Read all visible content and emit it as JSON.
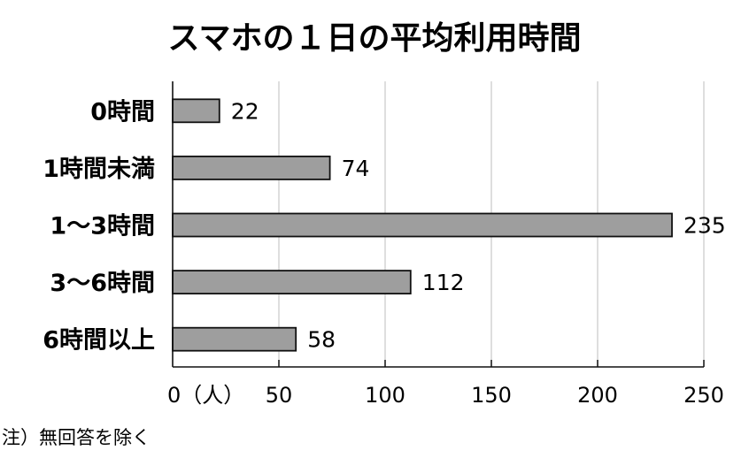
{
  "chart_data": {
    "type": "bar",
    "orientation": "horizontal",
    "title": "スマホの１日の平均利用時間",
    "categories": [
      "0時間",
      "1時間未満",
      "1～3時間",
      "3～6時間",
      "6時間以上"
    ],
    "values": [
      22,
      74,
      235,
      112,
      58
    ],
    "value_labels": [
      "22",
      "74",
      "235",
      "112",
      "58"
    ],
    "xlim": [
      0,
      250
    ],
    "x_ticks": [
      0,
      50,
      100,
      150,
      200,
      250
    ],
    "x_tick_labels": [
      "0（人）",
      "50",
      "100",
      "150",
      "200",
      "250"
    ],
    "grid": true,
    "bar_color": "#9e9e9e",
    "bar_edge_color": "#111111",
    "grid_color": "#c8c8c8"
  },
  "footnote": "注）無回答を除く"
}
